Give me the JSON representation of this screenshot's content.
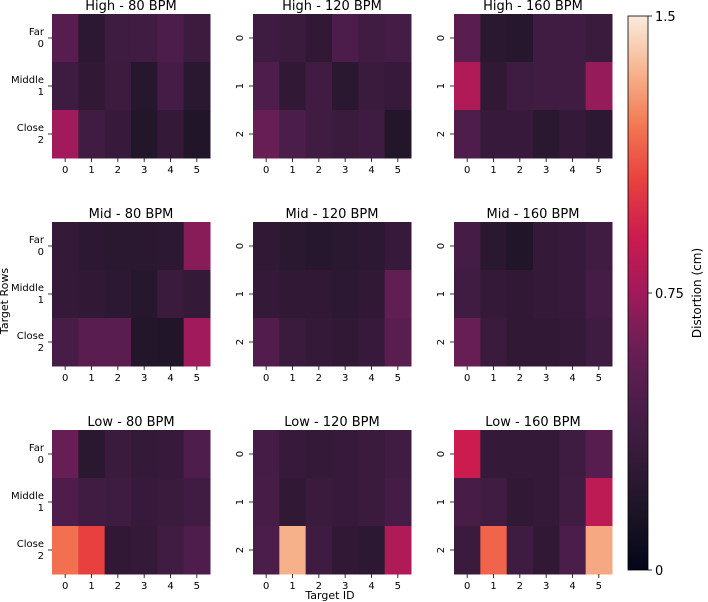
{
  "figure": {
    "xlabel": "Target ID",
    "ylabel": "Target Rows",
    "colorbar": {
      "label": "Distortion (cm)",
      "ticks": [
        "0",
        "0.75",
        "1.5"
      ],
      "min": 0,
      "max": 1.5,
      "colormap": "rocket",
      "stops": [
        {
          "v": 0.0,
          "c": "#03051a"
        },
        {
          "v": 0.1,
          "c": "#1b1425"
        },
        {
          "v": 0.2,
          "c": "#341a38"
        },
        {
          "v": 0.3,
          "c": "#4c1d4b"
        },
        {
          "v": 0.4,
          "c": "#6a1e55"
        },
        {
          "v": 0.5,
          "c": "#a11a5b"
        },
        {
          "v": 0.6,
          "c": "#cb1b4f"
        },
        {
          "v": 0.7,
          "c": "#e83f3f"
        },
        {
          "v": 0.8,
          "c": "#f37651"
        },
        {
          "v": 0.9,
          "c": "#f6b48e"
        },
        {
          "v": 1.0,
          "c": "#faebdd"
        }
      ]
    }
  },
  "chart_data": [
    {
      "type": "heatmap",
      "title": "High - 80 BPM",
      "x": [
        "0",
        "1",
        "2",
        "3",
        "4",
        "5"
      ],
      "y": [
        "Far\n0",
        "Middle\n1",
        "Close\n2"
      ],
      "values": [
        [
          0.5,
          0.25,
          0.36,
          0.38,
          0.45,
          0.35
        ],
        [
          0.36,
          0.28,
          0.35,
          0.22,
          0.4,
          0.24
        ],
        [
          0.75,
          0.38,
          0.32,
          0.2,
          0.3,
          0.18
        ]
      ]
    },
    {
      "type": "heatmap",
      "title": "High - 120 BPM",
      "x": [
        "0",
        "1",
        "2",
        "3",
        "4",
        "5"
      ],
      "y": [
        "0",
        "1",
        "2"
      ],
      "values": [
        [
          0.36,
          0.34,
          0.28,
          0.45,
          0.38,
          0.4
        ],
        [
          0.46,
          0.28,
          0.38,
          0.24,
          0.34,
          0.32
        ],
        [
          0.58,
          0.44,
          0.38,
          0.34,
          0.36,
          0.2
        ]
      ]
    },
    {
      "type": "heatmap",
      "title": "High - 160 BPM",
      "x": [
        "0",
        "1",
        "2",
        "3",
        "4",
        "5"
      ],
      "y": [
        "0",
        "1",
        "2"
      ],
      "values": [
        [
          0.52,
          0.24,
          0.22,
          0.38,
          0.38,
          0.34
        ],
        [
          0.8,
          0.28,
          0.36,
          0.38,
          0.38,
          0.72
        ],
        [
          0.46,
          0.32,
          0.32,
          0.24,
          0.3,
          0.26
        ]
      ]
    },
    {
      "type": "heatmap",
      "title": "Mid - 80 BPM",
      "x": [
        "0",
        "1",
        "2",
        "3",
        "4",
        "5"
      ],
      "y": [
        "Far\n0",
        "Middle\n1",
        "Close\n2"
      ],
      "values": [
        [
          0.3,
          0.26,
          0.24,
          0.24,
          0.26,
          0.68
        ],
        [
          0.3,
          0.28,
          0.26,
          0.22,
          0.34,
          0.3
        ],
        [
          0.42,
          0.52,
          0.52,
          0.2,
          0.18,
          0.75
        ]
      ]
    },
    {
      "type": "heatmap",
      "title": "Mid - 120 BPM",
      "x": [
        "0",
        "1",
        "2",
        "3",
        "4",
        "5"
      ],
      "y": [
        "0",
        "1",
        "2"
      ],
      "values": [
        [
          0.28,
          0.24,
          0.22,
          0.24,
          0.26,
          0.32
        ],
        [
          0.3,
          0.28,
          0.28,
          0.26,
          0.28,
          0.55
        ],
        [
          0.48,
          0.34,
          0.3,
          0.28,
          0.32,
          0.52
        ]
      ]
    },
    {
      "type": "heatmap",
      "title": "Mid - 160 BPM",
      "x": [
        "0",
        "1",
        "2",
        "3",
        "4",
        "5"
      ],
      "y": [
        "0",
        "1",
        "2"
      ],
      "values": [
        [
          0.4,
          0.24,
          0.18,
          0.3,
          0.32,
          0.38
        ],
        [
          0.38,
          0.3,
          0.28,
          0.3,
          0.32,
          0.4
        ],
        [
          0.58,
          0.34,
          0.28,
          0.28,
          0.3,
          0.36
        ]
      ]
    },
    {
      "type": "heatmap",
      "title": "Low - 80 BPM",
      "x": [
        "0",
        "1",
        "2",
        "3",
        "4",
        "5"
      ],
      "y": [
        "Far\n0",
        "Middle\n1",
        "Close\n2"
      ],
      "values": [
        [
          0.58,
          0.24,
          0.34,
          0.3,
          0.32,
          0.46
        ],
        [
          0.46,
          0.38,
          0.36,
          0.32,
          0.34,
          0.38
        ],
        [
          1.18,
          1.05,
          0.28,
          0.3,
          0.38,
          0.46
        ]
      ]
    },
    {
      "type": "heatmap",
      "title": "Low - 120 BPM",
      "x": [
        "0",
        "1",
        "2",
        "3",
        "4",
        "5"
      ],
      "y": [
        "0",
        "1",
        "2"
      ],
      "values": [
        [
          0.4,
          0.32,
          0.3,
          0.32,
          0.34,
          0.38
        ],
        [
          0.42,
          0.28,
          0.34,
          0.32,
          0.34,
          0.4
        ],
        [
          0.44,
          1.34,
          0.36,
          0.28,
          0.26,
          0.8
        ]
      ]
    },
    {
      "type": "heatmap",
      "title": "Low - 160 BPM",
      "x": [
        "0",
        "1",
        "2",
        "3",
        "4",
        "5"
      ],
      "y": [
        "0",
        "1",
        "2"
      ],
      "values": [
        [
          0.9,
          0.3,
          0.3,
          0.3,
          0.36,
          0.5
        ],
        [
          0.42,
          0.38,
          0.28,
          0.3,
          0.38,
          0.85
        ],
        [
          0.34,
          1.15,
          0.36,
          0.28,
          0.44,
          1.32
        ]
      ]
    }
  ]
}
